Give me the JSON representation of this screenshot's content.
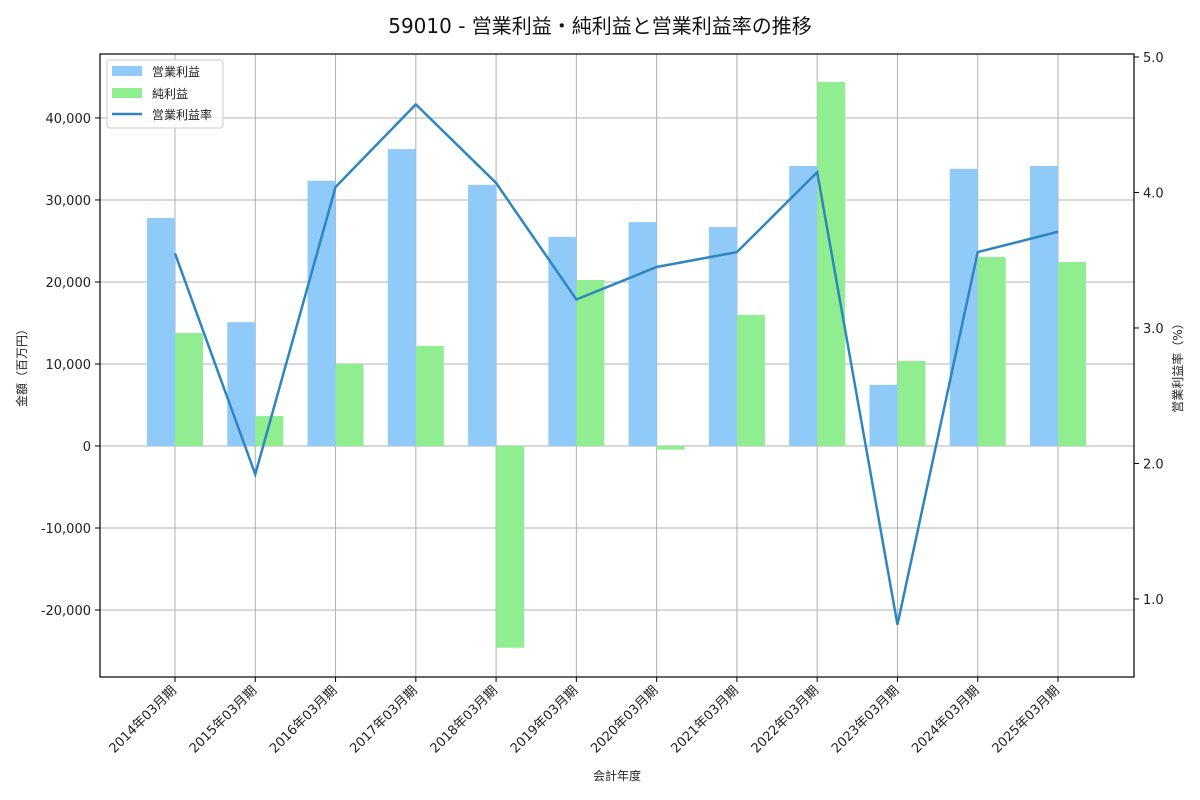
{
  "chart_data": {
    "type": "bar",
    "title": "59010 - 営業利益・純利益と営業利益率の推移",
    "xlabel": "会計年度",
    "ylabel": "金額（百万円）",
    "y2label": "営業利益率（%）",
    "categories": [
      "2014年03月期",
      "2015年03月期",
      "2016年03月期",
      "2017年03月期",
      "2018年03月期",
      "2019年03月期",
      "2020年03月期",
      "2021年03月期",
      "2022年03月期",
      "2023年03月期",
      "2024年03月期",
      "2025年03月期"
    ],
    "series": [
      {
        "name": "営業利益",
        "type": "bar",
        "axis": "left",
        "color": "#90caf9",
        "values": [
          27800,
          15100,
          32350,
          36200,
          31850,
          25500,
          27300,
          26700,
          34150,
          7450,
          33800,
          34150
        ]
      },
      {
        "name": "純利益",
        "type": "bar",
        "axis": "left",
        "color": "#90ee90",
        "values": [
          13780,
          3650,
          10000,
          12200,
          -24600,
          20240,
          -450,
          15980,
          44400,
          10370,
          23050,
          22440
        ]
      },
      {
        "name": "営業利益率",
        "type": "line",
        "axis": "right",
        "color": "#2e86c1",
        "values": [
          3.55,
          1.92,
          4.04,
          4.65,
          4.07,
          3.21,
          3.45,
          3.56,
          4.15,
          0.81,
          3.56,
          3.71
        ]
      }
    ],
    "ylim": [
      -28170,
      47800
    ],
    "y2lim": [
      0.424,
      5.022
    ],
    "yticks": [
      -20000,
      -10000,
      0,
      10000,
      20000,
      30000,
      40000
    ],
    "ytick_labels": [
      "-20,000",
      "-10,000",
      "0",
      "10,000",
      "20,000",
      "30,000",
      "40,000"
    ],
    "y2ticks": [
      1.0,
      2.0,
      3.0,
      4.0,
      5.0
    ],
    "y2tick_labels": [
      "1.0",
      "2.0",
      "3.0",
      "4.0",
      "5.0"
    ],
    "grid": true,
    "legend_position": "upper left"
  }
}
